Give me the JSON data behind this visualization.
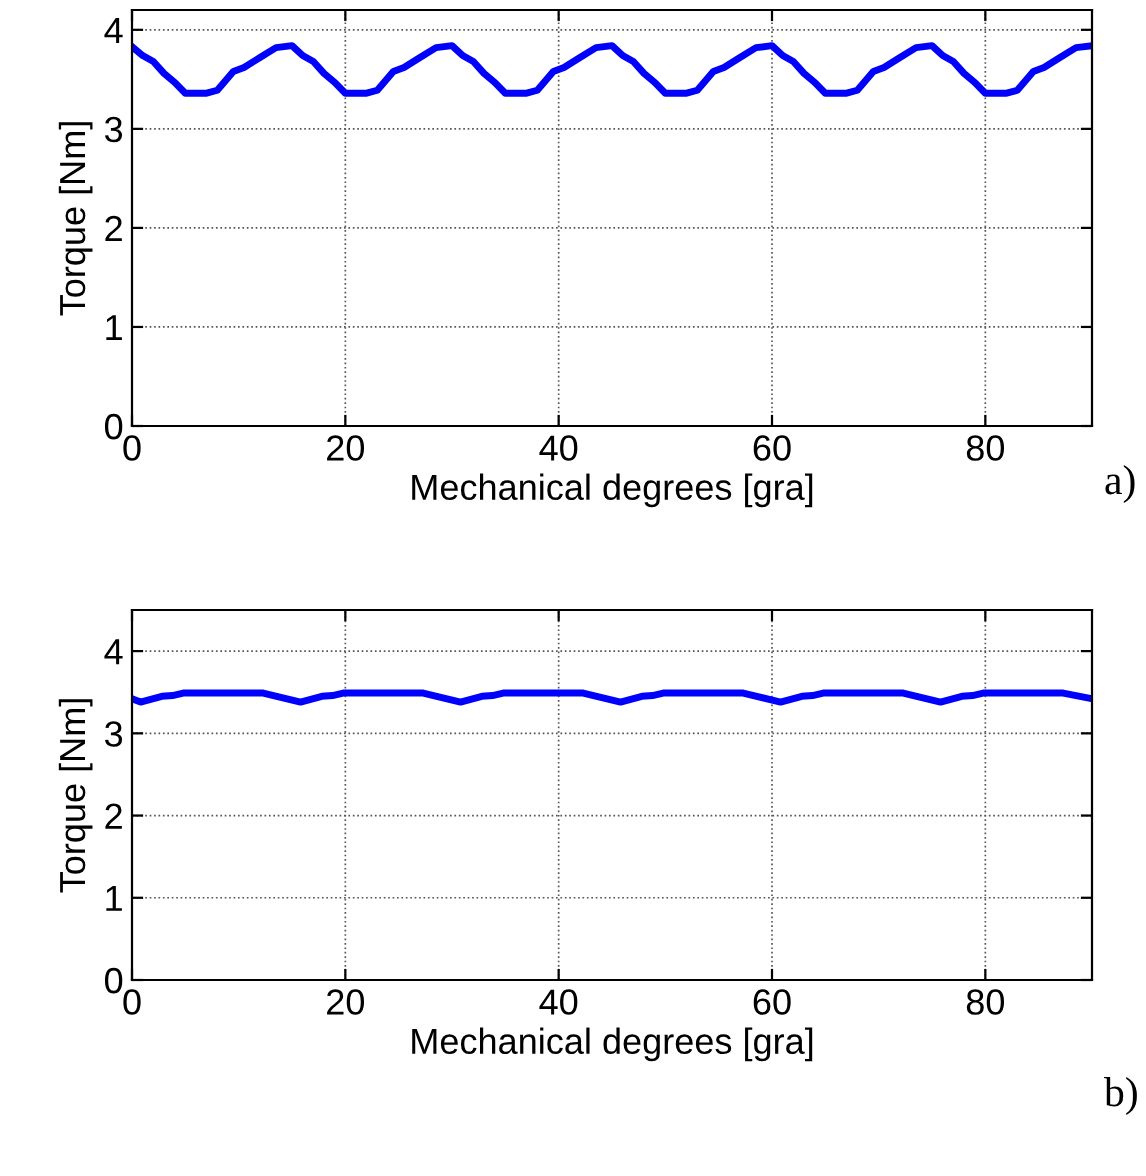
{
  "chart_data": [
    {
      "type": "line",
      "xlabel": "Mechanical degrees [gra]",
      "ylabel": "Torque [Nm]",
      "annotations": [
        "a)"
      ],
      "xlim": [
        0,
        90
      ],
      "ylim": [
        0,
        4.2
      ],
      "xticks": [
        0,
        20,
        40,
        60,
        80
      ],
      "yticks": [
        0,
        1,
        2,
        3,
        4
      ],
      "grid": true,
      "marker": "none",
      "line_style": "solid",
      "series": [
        {
          "color": "#0000ff",
          "x": [
            0,
            1,
            2,
            3,
            4,
            5,
            7,
            8,
            9.5,
            10.5,
            12,
            13.5,
            15,
            16,
            17,
            18,
            19,
            20,
            22,
            23,
            24.5,
            25.5,
            27,
            28.5,
            30,
            31,
            32,
            33,
            34,
            35,
            37,
            38,
            39.5,
            40.5,
            42,
            43.5,
            45,
            46,
            47,
            48,
            49,
            50,
            52,
            53,
            54.5,
            55.5,
            57,
            58.5,
            60,
            61,
            62,
            63,
            64,
            65,
            67,
            68,
            69.5,
            70.5,
            72,
            73.5,
            75,
            76,
            77,
            78,
            79,
            80,
            82,
            83,
            84.5,
            85.5,
            87,
            88.5,
            90
          ],
          "values": [
            3.83,
            3.74,
            3.68,
            3.56,
            3.47,
            3.36,
            3.36,
            3.39,
            3.58,
            3.62,
            3.72,
            3.82,
            3.84,
            3.74,
            3.68,
            3.56,
            3.47,
            3.36,
            3.36,
            3.39,
            3.58,
            3.62,
            3.72,
            3.82,
            3.84,
            3.74,
            3.68,
            3.56,
            3.47,
            3.36,
            3.36,
            3.39,
            3.58,
            3.62,
            3.72,
            3.82,
            3.84,
            3.74,
            3.68,
            3.56,
            3.47,
            3.36,
            3.36,
            3.39,
            3.58,
            3.62,
            3.72,
            3.82,
            3.84,
            3.74,
            3.68,
            3.56,
            3.47,
            3.36,
            3.36,
            3.39,
            3.58,
            3.62,
            3.72,
            3.82,
            3.84,
            3.74,
            3.68,
            3.56,
            3.47,
            3.36,
            3.36,
            3.39,
            3.58,
            3.62,
            3.72,
            3.82,
            3.84
          ]
        }
      ]
    },
    {
      "type": "line",
      "xlabel": "Mechanical degrees [gra]",
      "ylabel": "Torque [Nm]",
      "annotations": [
        "b)"
      ],
      "xlim": [
        0,
        90
      ],
      "ylim": [
        0,
        4.5
      ],
      "xticks": [
        0,
        20,
        40,
        60,
        80
      ],
      "yticks": [
        0,
        1,
        2,
        3,
        4
      ],
      "grid": true,
      "marker": "none",
      "line_style": "solid",
      "series": [
        {
          "color": "#0000ff",
          "x": [
            0,
            0.8,
            2.8,
            3.8,
            4.8,
            12.3,
            15.8,
            17.8,
            18.8,
            19.8,
            27.3,
            30.8,
            32.8,
            33.8,
            34.8,
            42.3,
            45.8,
            47.8,
            48.8,
            49.8,
            57.3,
            60.8,
            62.8,
            63.8,
            64.8,
            72.3,
            75.8,
            77.8,
            78.8,
            79.8,
            87.3,
            90
          ],
          "values": [
            3.42,
            3.38,
            3.45,
            3.46,
            3.49,
            3.49,
            3.38,
            3.45,
            3.46,
            3.49,
            3.49,
            3.38,
            3.45,
            3.46,
            3.49,
            3.49,
            3.38,
            3.45,
            3.46,
            3.49,
            3.49,
            3.38,
            3.45,
            3.46,
            3.49,
            3.49,
            3.38,
            3.45,
            3.46,
            3.49,
            3.49,
            3.42
          ]
        }
      ]
    }
  ]
}
